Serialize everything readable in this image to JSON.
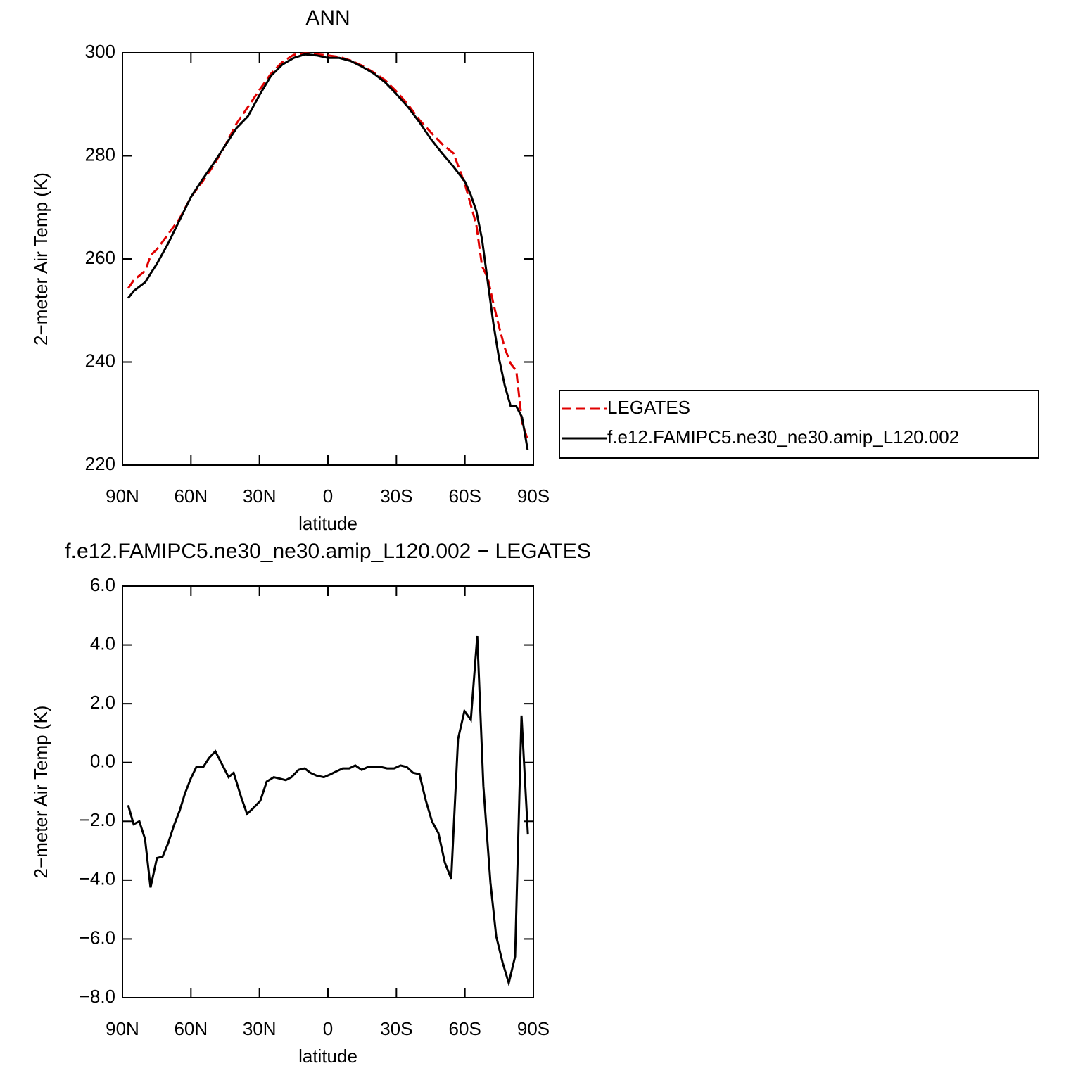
{
  "chart_data": [
    {
      "type": "line",
      "title": "ANN",
      "xlabel": "latitude",
      "ylabel": "2−meter Air Temp (K)",
      "x": [
        87.5,
        85,
        80,
        77.5,
        75,
        70,
        65,
        60,
        55,
        50,
        45,
        40,
        35,
        30,
        25,
        20,
        15,
        10,
        5,
        0,
        -5,
        -10,
        -15,
        -20,
        -25,
        -30,
        -35,
        -40,
        -45,
        -50,
        -55,
        -60,
        -62.5,
        -65,
        -67.5,
        -70,
        -72.5,
        -75,
        -77.5,
        -80,
        -82.5,
        -85,
        -87.5
      ],
      "series": [
        {
          "name": "LEGATES",
          "color": "#e00000",
          "dash": "dashed",
          "values": [
            254.3,
            255.9,
            257.7,
            260.8,
            261.8,
            264.8,
            267.8,
            272,
            275,
            278.2,
            282,
            286.3,
            289.5,
            292.8,
            295.9,
            298.2,
            299.6,
            299.9,
            299.7,
            299.5,
            299.2,
            298.5,
            297.5,
            296.2,
            294.7,
            292.5,
            290,
            287,
            284.6,
            282.3,
            280.5,
            274.5,
            270.6,
            266.6,
            258.6,
            256.3,
            251.3,
            246.8,
            242.7,
            239.7,
            238.3,
            228.3,
            224.9
          ]
        },
        {
          "name": "f.e12.FAMIPC5.ne30_ne30.amip_L120.002",
          "color": "#000000",
          "dash": "solid",
          "values": [
            252.4,
            253.8,
            255.5,
            257.3,
            259,
            263,
            267.5,
            272,
            275.4,
            278.6,
            282,
            285.4,
            287.7,
            291.8,
            295.5,
            297.7,
            299,
            299.7,
            299.5,
            299,
            299,
            298.4,
            297.3,
            296,
            294.3,
            292,
            289.5,
            286.6,
            283.3,
            280.5,
            277.9,
            275,
            272.5,
            269.3,
            263.8,
            255.6,
            247.4,
            240.6,
            235.4,
            231.5,
            231.4,
            229.3,
            222.9
          ]
        }
      ],
      "xlim": [
        90,
        -90
      ],
      "xticks": [
        {
          "value": 90,
          "label": "90N"
        },
        {
          "value": 60,
          "label": "60N"
        },
        {
          "value": 30,
          "label": "30N"
        },
        0,
        {
          "value": -30,
          "label": "30S"
        },
        {
          "value": -60,
          "label": "60S"
        },
        {
          "value": -90,
          "label": "90S"
        }
      ],
      "ylim": [
        220,
        300
      ],
      "yticks": [
        220,
        240,
        260,
        280,
        300
      ],
      "legend": "right"
    },
    {
      "type": "line",
      "title": "f.e12.FAMIPC5.ne30_ne30.amip_L120.002 − LEGATES",
      "xlabel": "latitude",
      "ylabel": "2−meter Air Temp (K)",
      "x": [
        87.5,
        85.1,
        82.6,
        80.1,
        77.7,
        74.9,
        72.4,
        70.0,
        67.5,
        65.0,
        62.6,
        60.1,
        57.6,
        54.6,
        52.1,
        49.3,
        46.8,
        43.5,
        41.3,
        37.9,
        35.4,
        32.7,
        29.6,
        26.8,
        23.7,
        21.0,
        18.5,
        16.0,
        12.9,
        10.2,
        7.7,
        4.9,
        1.8,
        -1.2,
        -3.7,
        -6.5,
        -9.3,
        -12.0,
        -14.8,
        -17.6,
        -20.7,
        -23.1,
        -25.9,
        -29.0,
        -31.8,
        -34.5,
        -37.3,
        -40.1,
        -42.9,
        -45.6,
        -48.4,
        -51.2,
        -54.0,
        -57.0,
        -59.8,
        -62.6,
        -65.4,
        -68.1,
        -71.2,
        -73.7,
        -76.5,
        -79.2,
        -82.0,
        -84.8,
        -87.6
      ],
      "series": [
        {
          "color": "#000000",
          "values": [
            -1.45,
            -2.1,
            -2.0,
            -2.6,
            -4.25,
            -3.25,
            -3.2,
            -2.75,
            -2.15,
            -1.65,
            -1.05,
            -0.55,
            -0.15,
            -0.15,
            0.15,
            0.38,
            0.0,
            -0.5,
            -0.35,
            -1.2,
            -1.75,
            -1.55,
            -1.3,
            -0.65,
            -0.5,
            -0.55,
            -0.6,
            -0.5,
            -0.25,
            -0.2,
            -0.35,
            -0.45,
            -0.5,
            -0.4,
            -0.3,
            -0.2,
            -0.2,
            -0.1,
            -0.25,
            -0.15,
            -0.15,
            -0.15,
            -0.2,
            -0.2,
            -0.1,
            -0.15,
            -0.35,
            -0.4,
            -1.3,
            -2.0,
            -2.4,
            -3.4,
            -3.95,
            0.8,
            1.75,
            1.45,
            4.3,
            -0.8,
            -4.1,
            -5.9,
            -6.8,
            -7.5,
            -6.6,
            1.6,
            -2.45
          ]
        }
      ],
      "xlim": [
        90,
        -90
      ],
      "xticks": [
        {
          "value": 90,
          "label": "90N"
        },
        {
          "value": 60,
          "label": "60N"
        },
        {
          "value": 30,
          "label": "30N"
        },
        0,
        {
          "value": -30,
          "label": "30S"
        },
        {
          "value": -60,
          "label": "60S"
        },
        {
          "value": -90,
          "label": "90S"
        }
      ],
      "ylim": [
        -8,
        6
      ],
      "yticks": [
        {
          "value": -8,
          "label": "−8.0"
        },
        {
          "value": -6,
          "label": "−6.0"
        },
        {
          "value": -4,
          "label": "−4.0"
        },
        {
          "value": -2,
          "label": "−2.0"
        },
        {
          "value": 0,
          "label": "0.0"
        },
        {
          "value": 2,
          "label": "2.0"
        },
        {
          "value": 4,
          "label": "4.0"
        },
        {
          "value": 6,
          "label": "6.0"
        }
      ]
    }
  ]
}
